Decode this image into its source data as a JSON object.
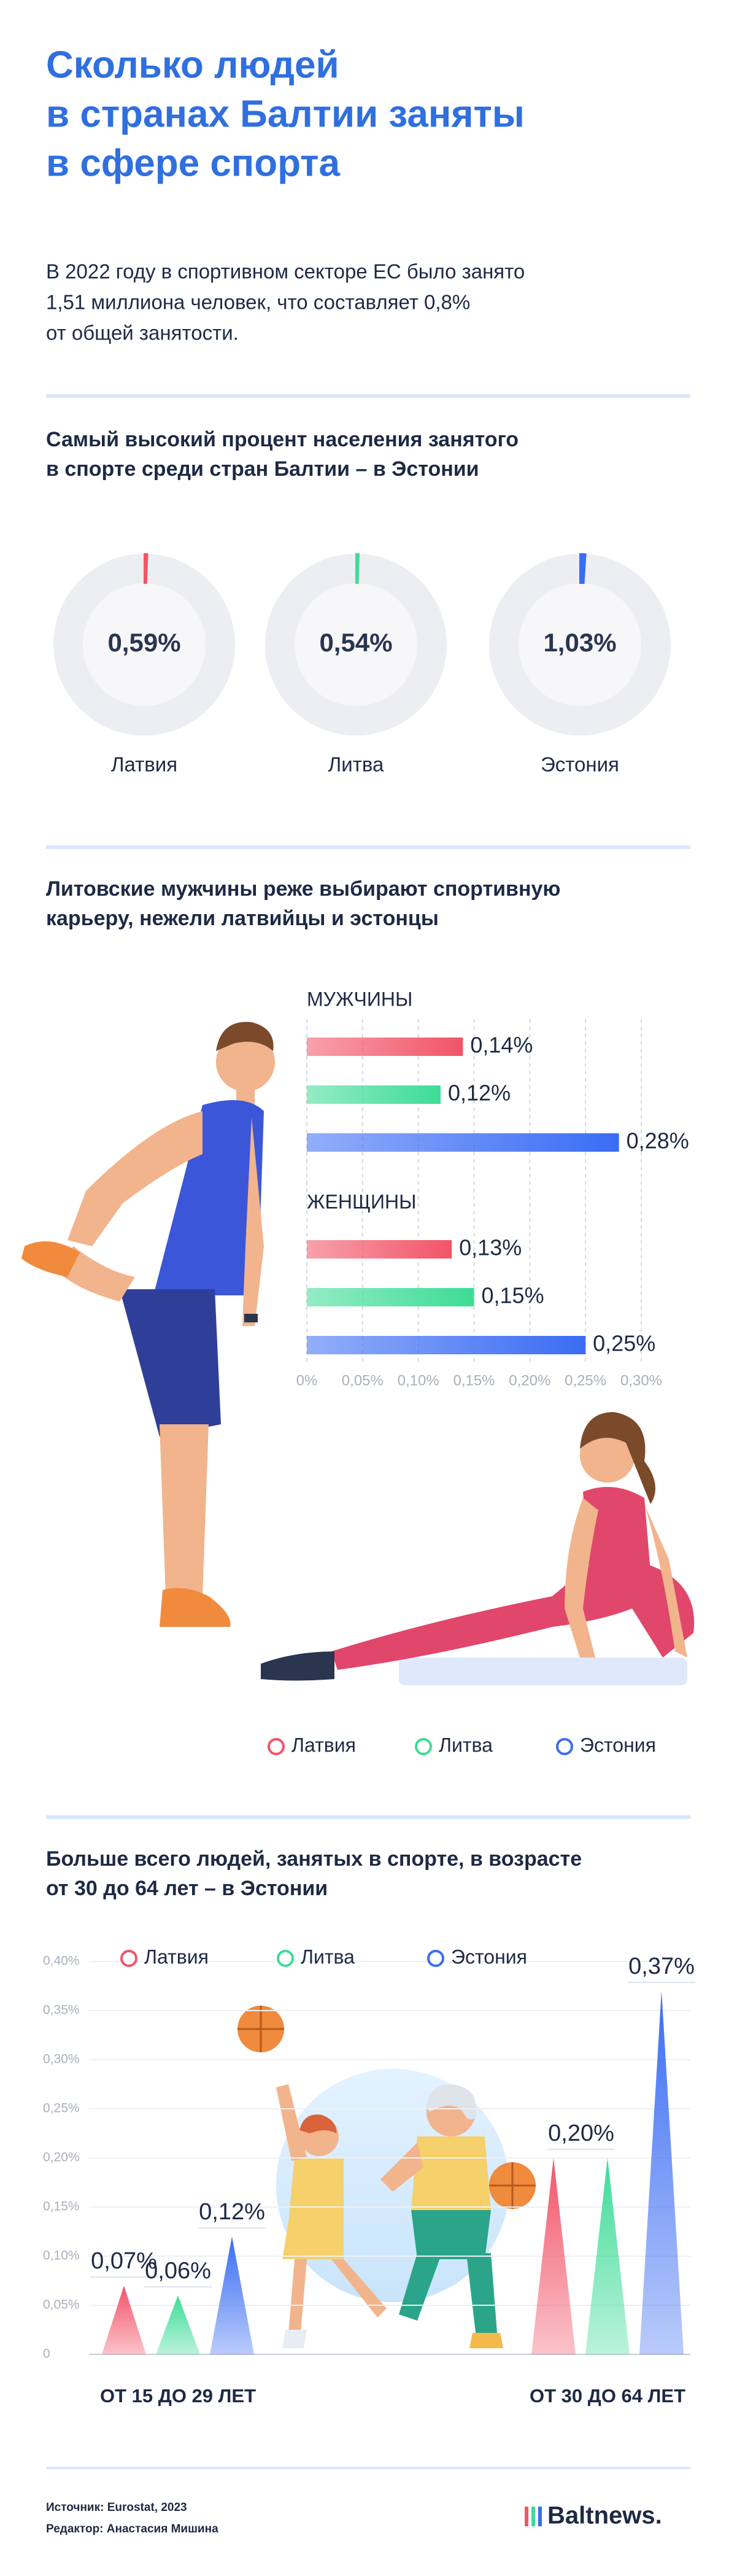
{
  "title": [
    "Сколько людей",
    "в странах Балтии заняты",
    "в сфере спорта"
  ],
  "intro": [
    "В 2022 году в спортивном секторе ЕС было занято",
    "1,51 миллиона человек, что составляет 0,8%",
    "от общей занятости."
  ],
  "chart_data": [
    {
      "type": "donut",
      "title": [
        "Самый высокий процент населения занятого",
        "в спорте среди стран Балтии – в Эстонии"
      ],
      "categories": [
        "Латвия",
        "Литва",
        "Эстония"
      ],
      "values": [
        0.59,
        0.54,
        1.03
      ],
      "value_labels": [
        "0,59%",
        "0,54%",
        "1,03%"
      ],
      "colors": [
        "#f25468",
        "#3ddc97",
        "#3a6cf4"
      ]
    },
    {
      "type": "bar",
      "orientation": "horizontal",
      "title": [
        "Литовские мужчины реже выбирают спортивную",
        "карьеру, нежели латвийцы и эстонцы"
      ],
      "categories": [
        "МУЖЧИНЫ",
        "ЖЕНЩИНЫ"
      ],
      "series": [
        {
          "name": "Латвия",
          "color": "#f25468",
          "values": [
            0.14,
            0.13
          ],
          "value_labels": [
            "0,14%",
            "0,13%"
          ]
        },
        {
          "name": "Литва",
          "color": "#3ddc97",
          "values": [
            0.12,
            0.15
          ],
          "value_labels": [
            "0,12%",
            "0,15%"
          ]
        },
        {
          "name": "Эстония",
          "color": "#3a6cf4",
          "values": [
            0.28,
            0.25
          ],
          "value_labels": [
            "0,28%",
            "0,25%"
          ]
        }
      ],
      "xlim": [
        0,
        0.3
      ],
      "xticks": [
        {
          "value": 0,
          "label": "0%"
        },
        {
          "value": 0.05,
          "label": "0,05%"
        },
        {
          "value": 0.1,
          "label": "0,10%"
        },
        {
          "value": 0.15,
          "label": "0,15%"
        },
        {
          "value": 0.2,
          "label": "0,20%"
        },
        {
          "value": 0.25,
          "label": "0,25%"
        },
        {
          "value": 0.3,
          "label": "0,30%"
        }
      ],
      "grid": true,
      "legend": "bottom"
    },
    {
      "type": "triangle",
      "title": [
        "Больше всего людей, занятых в спорте, в возрасте",
        "от 30 до 64 лет – в Эстонии"
      ],
      "categories": [
        "ОТ 15 ДО 29 ЛЕТ",
        "ОТ 30 ДО 64 ЛЕТ"
      ],
      "series": [
        {
          "name": "Латвия",
          "color": "#f25468",
          "values": [
            0.07,
            0.2
          ],
          "value_labels": [
            "0,07%",
            "0,20%"
          ]
        },
        {
          "name": "Литва",
          "color": "#3ddc97",
          "values": [
            0.06,
            0.2
          ],
          "value_labels": [
            "0,06%",
            null
          ]
        },
        {
          "name": "Эстония",
          "color": "#3a6cf4",
          "values": [
            0.12,
            0.37
          ],
          "value_labels": [
            "0,12%",
            "0,37%"
          ]
        }
      ],
      "ylim": [
        0,
        0.4
      ],
      "yticks": [
        0,
        {
          "value": 0.05,
          "label": "0,05%"
        },
        {
          "value": 0.1,
          "label": "0,10%"
        },
        {
          "value": 0.15,
          "label": "0,15%"
        },
        {
          "value": 0.2,
          "label": "0,20%"
        },
        {
          "value": 0.25,
          "label": "0,25%"
        },
        {
          "value": 0.3,
          "label": "0,30%"
        },
        {
          "value": 0.35,
          "label": "0,35%"
        },
        {
          "value": 0.4,
          "label": "0,40%"
        }
      ],
      "grid": true,
      "legend": "top"
    }
  ],
  "footer": {
    "source": "Источник: Eurostat, 2023",
    "editor": "Редактор: Анастасия Мишина",
    "logo": "Baltnews."
  }
}
